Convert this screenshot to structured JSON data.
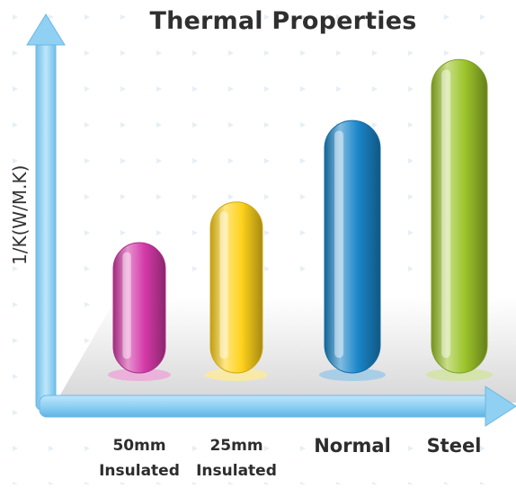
{
  "chart_data": {
    "type": "bar",
    "title": "Thermal Properties",
    "ylabel": "1/K(W/M.K)",
    "xlabel": "",
    "categories": [
      [
        "50mm",
        "Insulated"
      ],
      [
        "25mm",
        "Insulated"
      ],
      [
        "Normal"
      ],
      [
        "Steel"
      ]
    ],
    "values": [
      3.2,
      4.2,
      6.2,
      7.7
    ],
    "ylim": [
      0,
      8.5
    ],
    "yticks_shown": false,
    "grid": false,
    "legend": "none",
    "colors": [
      "#d43aa8",
      "#ffd21c",
      "#1a86c9",
      "#9cc42a"
    ]
  },
  "axis_color": "#8fcdf0",
  "floor_color": "#d9d9d9"
}
